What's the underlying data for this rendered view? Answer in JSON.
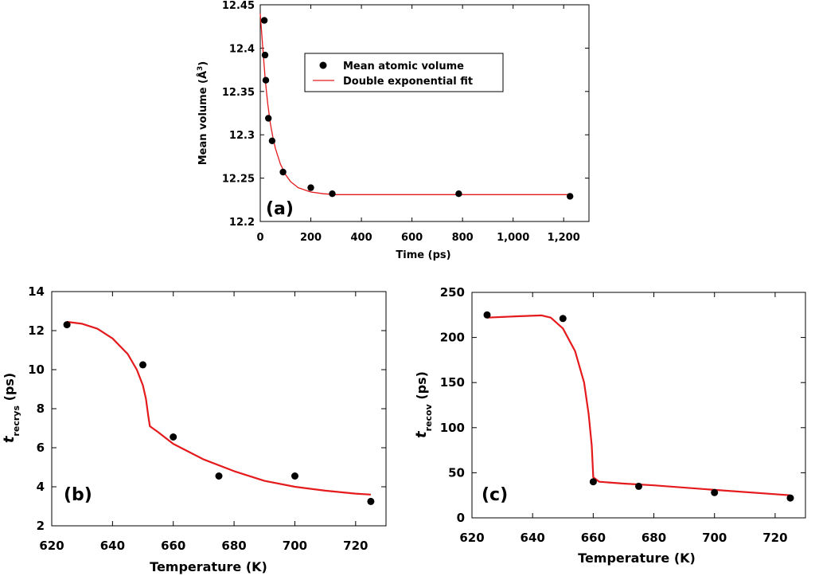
{
  "chart_data": [
    {
      "id": "a",
      "type": "scatter",
      "panel_label": "(a)",
      "xlabel": "Time (ps)",
      "ylabel_main": "Mean volume (Å",
      "ylabel_sup": "3",
      "ylabel_end": ")",
      "xlim": [
        0,
        1300
      ],
      "ylim": [
        12.2,
        12.45
      ],
      "xticks": [
        0,
        200,
        400,
        600,
        800,
        1000,
        1200
      ],
      "xtick_labels": [
        "0",
        "200",
        "400",
        "600",
        "800",
        "1,000",
        "1,200"
      ],
      "yticks": [
        12.2,
        12.25,
        12.3,
        12.35,
        12.4,
        12.45
      ],
      "ytick_labels": [
        "12.2",
        "12.25",
        "12.3",
        "12.35",
        "12.4",
        "12.45"
      ],
      "legend": {
        "position": "top-right",
        "points_label": "Mean atomic volume",
        "fit_label": "Double exponential fit"
      },
      "series": [
        {
          "name": "Mean atomic volume",
          "x": [
            16,
            19,
            22,
            32,
            47,
            90,
            200,
            285,
            785,
            1225
          ],
          "y": [
            12.432,
            12.392,
            12.363,
            12.319,
            12.293,
            12.257,
            12.239,
            12.232,
            12.232,
            12.229
          ]
        },
        {
          "name": "Double exponential fit",
          "x": [
            0,
            10,
            20,
            30,
            40,
            50,
            60,
            80,
            100,
            120,
            150,
            200,
            250,
            300,
            400,
            600,
            800,
            1000,
            1230
          ],
          "y": [
            12.44,
            12.4,
            12.362,
            12.335,
            12.313,
            12.297,
            12.284,
            12.266,
            12.254,
            12.246,
            12.239,
            12.234,
            12.232,
            12.231,
            12.231,
            12.231,
            12.231,
            12.231,
            12.231
          ]
        }
      ],
      "colors": {
        "points": "#000000",
        "fit": "#e41a1c"
      }
    },
    {
      "id": "b",
      "type": "scatter",
      "panel_label": "(b)",
      "xlabel": "Temperature (K)",
      "ylabel_main": "t",
      "ylabel_sub": "recrys",
      "ylabel_end": " (ps)",
      "xlim": [
        620,
        730
      ],
      "ylim": [
        2,
        14
      ],
      "xticks": [
        620,
        640,
        660,
        680,
        700,
        720
      ],
      "xtick_labels": [
        "620",
        "640",
        "660",
        "680",
        "700",
        "720"
      ],
      "yticks": [
        2,
        4,
        6,
        8,
        10,
        12,
        14
      ],
      "ytick_labels": [
        "2",
        "4",
        "6",
        "8",
        "10",
        "12",
        "14"
      ],
      "series": [
        {
          "name": "data",
          "x": [
            625,
            650,
            660,
            675,
            700,
            725
          ],
          "y": [
            12.3,
            10.25,
            6.55,
            4.55,
            4.55,
            3.25
          ]
        },
        {
          "name": "fit",
          "x": [
            625,
            630,
            635,
            640,
            645,
            648,
            650,
            651,
            651.8,
            652.3,
            655,
            660,
            670,
            680,
            690,
            700,
            710,
            720,
            725
          ],
          "y": [
            12.45,
            12.35,
            12.1,
            11.6,
            10.8,
            10.0,
            9.2,
            8.5,
            7.6,
            7.1,
            6.8,
            6.2,
            5.4,
            4.8,
            4.3,
            4.0,
            3.8,
            3.65,
            3.6
          ]
        }
      ],
      "colors": {
        "points": "#000000",
        "fit": "#e41a1c"
      }
    },
    {
      "id": "c",
      "type": "scatter",
      "panel_label": "(c)",
      "xlabel": "Temperature (K)",
      "ylabel_main": "t",
      "ylabel_sub": "recov",
      "ylabel_end": " (ps)",
      "xlim": [
        620,
        730
      ],
      "ylim": [
        0,
        250
      ],
      "xticks": [
        620,
        640,
        660,
        680,
        700,
        720
      ],
      "xtick_labels": [
        "620",
        "640",
        "660",
        "680",
        "700",
        "720"
      ],
      "yticks": [
        0,
        50,
        100,
        150,
        200,
        250
      ],
      "ytick_labels": [
        "0",
        "50",
        "100",
        "150",
        "200",
        "250"
      ],
      "series": [
        {
          "name": "data",
          "x": [
            625,
            650,
            660,
            675,
            700,
            725
          ],
          "y": [
            225,
            221,
            40,
            35,
            28,
            22
          ]
        },
        {
          "name": "fit",
          "x": [
            625,
            635,
            643,
            646,
            650,
            654,
            657,
            658.5,
            659.5,
            660,
            662,
            670,
            680,
            700,
            725
          ],
          "y": [
            222,
            223.5,
            224.5,
            222,
            210,
            185,
            150,
            115,
            80,
            45,
            40,
            38,
            36,
            31,
            25
          ]
        }
      ],
      "colors": {
        "points": "#000000",
        "fit": "#e41a1c"
      }
    }
  ]
}
